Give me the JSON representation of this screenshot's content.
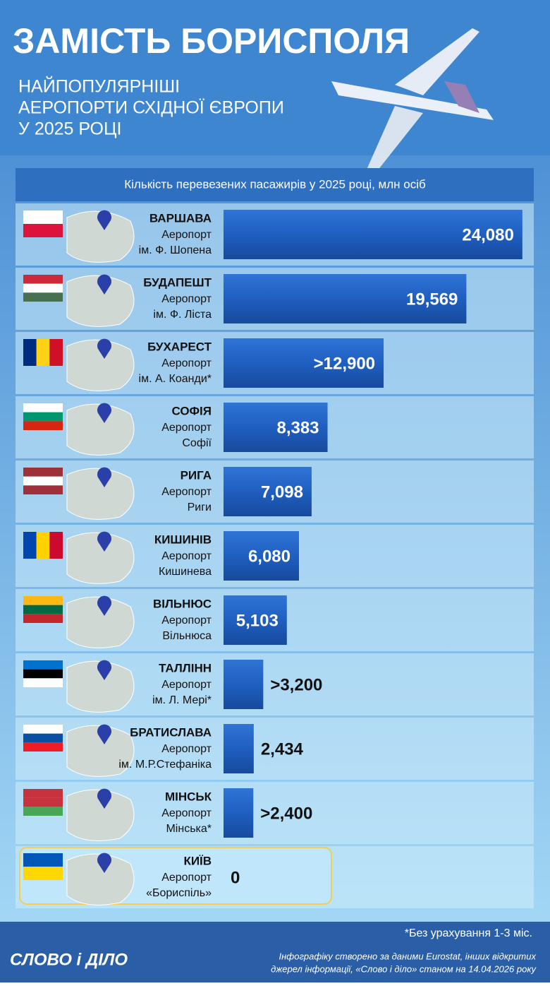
{
  "chart_data": {
    "type": "bar",
    "orientation": "horizontal",
    "title": "ЗАМІСТЬ БОРИСПОЛЯ",
    "subtitle": [
      "НАЙПОПУЛЯРНІШІ",
      "АЕРОПОРТИ СХІДНОЇ ЄВРОПИ",
      "У 2025 РОЦІ"
    ],
    "axis_label": "Кількість перевезених пасажирів у 2025 році, млн осіб",
    "categories": [
      "ВАРШАВА",
      "БУДАПЕШТ",
      "БУХАРЕСТ",
      "СОФІЯ",
      "РИГА",
      "КИШИНІВ",
      "ВІЛЬНЮС",
      "ТАЛЛІНН",
      "БРАТИСЛАВА",
      "МІНСЬК",
      "КИЇВ"
    ],
    "airports": [
      [
        "Аеропорт",
        "ім. Ф. Шопена"
      ],
      [
        "Аеропорт",
        "ім. Ф. Ліста"
      ],
      [
        "Аеропорт",
        "ім. А. Коанди*"
      ],
      [
        "Аеропорт",
        "Софії"
      ],
      [
        "Аеропорт",
        "Риги"
      ],
      [
        "Аеропорт",
        "Кишинева"
      ],
      [
        "Аеропорт",
        "Вільнюса"
      ],
      [
        "Аеропорт",
        "ім. Л. Мері*"
      ],
      [
        "Аеропорт",
        "ім. М.Р.Стефаніка"
      ],
      [
        "Аеропорт",
        "Мінська*"
      ],
      [
        "Аеропорт",
        "«Бориспіль»"
      ]
    ],
    "values": [
      24.08,
      19.569,
      12.9,
      8.383,
      7.098,
      6.08,
      5.103,
      3.2,
      2.434,
      2.4,
      0
    ],
    "value_labels": [
      "24,080",
      "19,569",
      ">12,900",
      "8,383",
      "7,098",
      "6,080",
      "5,103",
      ">3,200",
      "2,434",
      ">2,400",
      "0"
    ],
    "color": "#1f5fc0",
    "footnote": "*Без урахування 1-3 міс.",
    "logo": "СЛОВО і ДІЛО",
    "source": [
      "Інфографіку створено за даними Eurostat, інших відкритих",
      "джерел інформації, «Слово і діло» станом на 14.04.2026 року"
    ]
  }
}
